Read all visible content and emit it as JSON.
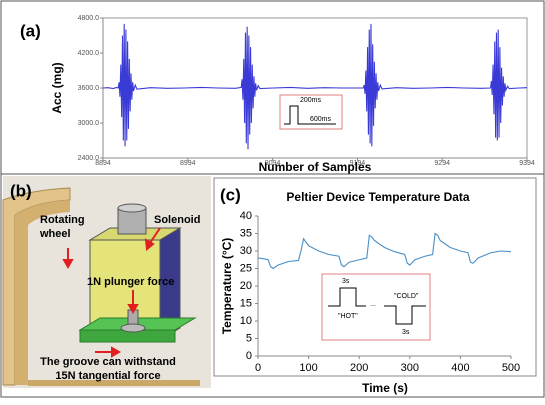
{
  "chart_data": [
    {
      "type": "line",
      "panel_label": "(a)",
      "ylabel": "Acc (mg)",
      "xlabel": "Number of Samples",
      "xlim": [
        8894,
        9394
      ],
      "xticks": [
        8894,
        8994,
        9094,
        9194,
        9294,
        9394
      ],
      "ylim": [
        2400,
        4800
      ],
      "yticks": [
        {
          "value": 2400,
          "label": "2400.0"
        },
        {
          "value": 3000,
          "label": "3000.0"
        },
        {
          "value": 3600,
          "label": "3600.0"
        },
        {
          "value": 4200,
          "label": "4200.0"
        },
        {
          "value": 4800,
          "label": "4800.0"
        }
      ],
      "grid": false,
      "x": [
        8894,
        8900,
        8906,
        8910,
        8912,
        8913,
        8914,
        8915,
        8916,
        8917,
        8918,
        8919,
        8920,
        8921,
        8922,
        8923,
        8924,
        8925,
        8926,
        8927,
        8928,
        8929,
        8930,
        8932,
        8934,
        8950,
        8970,
        8990,
        9010,
        9030,
        9050,
        9057,
        9058,
        9059,
        9060,
        9061,
        9062,
        9063,
        9064,
        9065,
        9066,
        9067,
        9068,
        9069,
        9070,
        9071,
        9072,
        9073,
        9074,
        9075,
        9077,
        9079,
        9095,
        9115,
        9135,
        9155,
        9175,
        9195,
        9201,
        9202,
        9203,
        9204,
        9205,
        9206,
        9207,
        9208,
        9209,
        9210,
        9211,
        9212,
        9213,
        9214,
        9215,
        9216,
        9217,
        9218,
        9219,
        9221,
        9223,
        9240,
        9260,
        9280,
        9300,
        9320,
        9340,
        9351,
        9352,
        9353,
        9354,
        9355,
        9356,
        9357,
        9358,
        9359,
        9360,
        9361,
        9362,
        9363,
        9364,
        9365,
        9366,
        9367,
        9368,
        9369,
        9371,
        9373,
        9385,
        9394
      ],
      "series": [
        {
          "color": "#3a3ad6",
          "values": [
            3600,
            3605,
            3590,
            3610,
            3600,
            3700,
            3450,
            4000,
            3100,
            4500,
            2700,
            4700,
            2600,
            4600,
            2700,
            4400,
            2900,
            4100,
            3200,
            3850,
            3400,
            3700,
            3550,
            3650,
            3580,
            3605,
            3595,
            3600,
            3610,
            3600,
            3595,
            3610,
            3750,
            3400,
            4100,
            3000,
            4550,
            2650,
            4650,
            2550,
            4500,
            2800,
            4300,
            3000,
            4000,
            3250,
            3800,
            3450,
            3680,
            3560,
            3640,
            3590,
            3600,
            3610,
            3595,
            3605,
            3600,
            3600,
            3600,
            3650,
            3500,
            3900,
            3200,
            4300,
            2800,
            4600,
            2650,
            4700,
            2600,
            4350,
            2950,
            4050,
            3250,
            3850,
            3400,
            3700,
            3550,
            3650,
            3585,
            3605,
            3595,
            3600,
            3610,
            3600,
            3595,
            3600,
            3720,
            3480,
            4000,
            3150,
            4400,
            2750,
            4550,
            2700,
            4600,
            2750,
            4300,
            3000,
            3950,
            3300,
            3800,
            3450,
            3680,
            3560,
            3630,
            3590,
            3600,
            3605
          ]
        }
      ],
      "inset": [
        "200ms",
        "600ms"
      ]
    },
    {
      "type": "line",
      "panel_label": "(c)",
      "title": "Peltier Device Temperature Data",
      "ylabel": "Temperature (°C)",
      "xlabel": "Time (s)",
      "xlim": [
        0,
        500
      ],
      "xticks": [
        0,
        100,
        200,
        300,
        400,
        500
      ],
      "ylim": [
        0,
        40
      ],
      "yticks": [
        0,
        5,
        10,
        15,
        20,
        25,
        30,
        35,
        40
      ],
      "grid": false,
      "x": [
        0,
        10,
        20,
        25,
        30,
        40,
        60,
        80,
        85,
        90,
        95,
        100,
        120,
        140,
        160,
        165,
        170,
        180,
        200,
        215,
        220,
        225,
        230,
        250,
        270,
        290,
        295,
        300,
        310,
        330,
        345,
        350,
        355,
        360,
        380,
        400,
        415,
        420,
        425,
        435,
        460,
        480,
        500
      ],
      "series": [
        {
          "color": "#4a8fc6",
          "values": [
            28,
            27.8,
            27.5,
            25.5,
            25,
            26,
            27,
            27.3,
            30,
            33.5,
            32.5,
            31.5,
            30,
            29,
            28.5,
            26,
            25.5,
            26.8,
            27.5,
            28,
            34.5,
            34,
            33,
            31,
            29.8,
            29,
            26.5,
            26,
            27.5,
            28.5,
            29,
            35,
            34.5,
            33,
            31,
            30,
            29.5,
            26.8,
            26.5,
            28,
            29.5,
            30,
            29.8
          ]
        }
      ],
      "inset": [
        "3s",
        "\"HOT\"",
        "...",
        "\"COLD\"",
        "3s"
      ]
    }
  ],
  "diagram": {
    "panel_label": "(b)",
    "wheel": [
      "Rotating",
      "wheel"
    ],
    "solenoid": "Solenoid",
    "plunger": "1N plunger force",
    "groove": [
      "The groove can withstand",
      "15N tangential force"
    ]
  }
}
